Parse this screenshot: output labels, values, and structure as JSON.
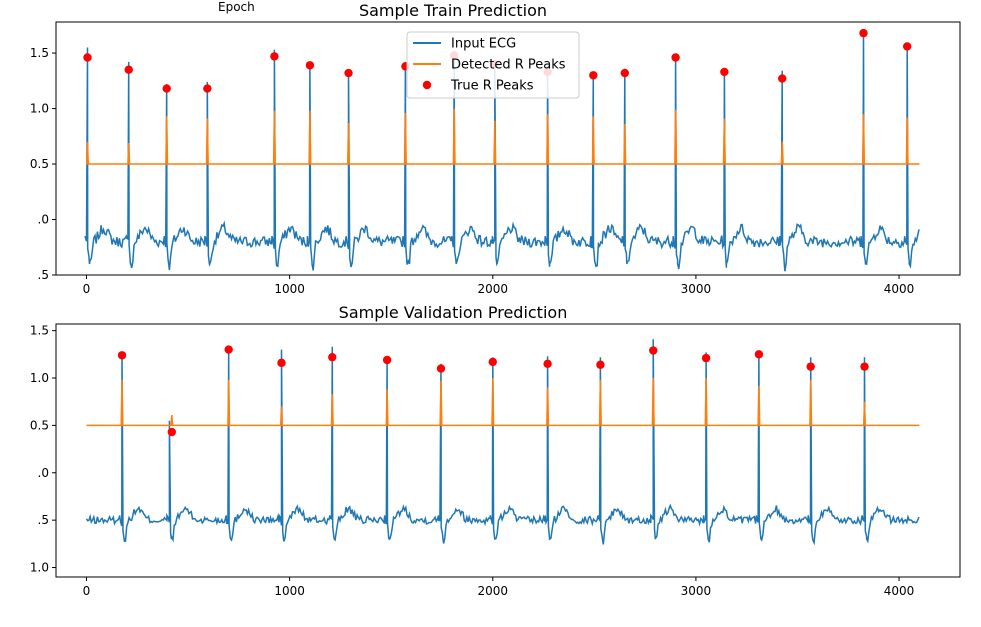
{
  "stray_label": "Epoch",
  "legend": {
    "input_ecg": "Input ECG",
    "detected": "Detected R Peaks",
    "true_peaks": "True R Peaks"
  },
  "colors": {
    "ecg": "#1f77b4",
    "detected": "#ff7f0e",
    "true": "#ff0000"
  },
  "chart_data": [
    {
      "type": "line",
      "title": "Sample Train Prediction",
      "xlim": [
        -150,
        4300
      ],
      "ylim": [
        -0.5,
        1.78
      ],
      "xticks": [
        0,
        1000,
        2000,
        3000,
        4000
      ],
      "yticks": [
        -0.5,
        0.0,
        0.5,
        1.0,
        1.5
      ],
      "ytick_labels": [
        ".5",
        ".0",
        "0.5",
        "1.0",
        "1.5"
      ],
      "grid": false,
      "legend_position": "upper center",
      "baseline": -0.2,
      "noise": 0.05,
      "detection_threshold": 0.5,
      "series": [
        {
          "name": "Input ECG",
          "peaks": [
            {
              "x": 5,
              "y": 1.55
            },
            {
              "x": 208,
              "y": 1.42
            },
            {
              "x": 395,
              "y": 1.22
            },
            {
              "x": 595,
              "y": 1.24
            },
            {
              "x": 925,
              "y": 1.53
            },
            {
              "x": 1100,
              "y": 1.42
            },
            {
              "x": 1290,
              "y": 1.34
            },
            {
              "x": 1570,
              "y": 1.42
            },
            {
              "x": 1810,
              "y": 1.5
            },
            {
              "x": 2010,
              "y": 1.42
            },
            {
              "x": 2270,
              "y": 1.4
            },
            {
              "x": 2495,
              "y": 1.33
            },
            {
              "x": 2650,
              "y": 1.36
            },
            {
              "x": 2900,
              "y": 1.48
            },
            {
              "x": 3140,
              "y": 1.36
            },
            {
              "x": 3425,
              "y": 1.34
            },
            {
              "x": 3825,
              "y": 1.7
            },
            {
              "x": 4040,
              "y": 1.58
            }
          ]
        },
        {
          "name": "Detected R Peaks",
          "spikes": [
            {
              "x": 5,
              "y": 0.7
            },
            {
              "x": 208,
              "y": 0.69
            },
            {
              "x": 395,
              "y": 0.93
            },
            {
              "x": 595,
              "y": 0.91
            },
            {
              "x": 925,
              "y": 0.98
            },
            {
              "x": 1100,
              "y": 0.98
            },
            {
              "x": 1290,
              "y": 0.87
            },
            {
              "x": 1570,
              "y": 0.96
            },
            {
              "x": 1810,
              "y": 1.0
            },
            {
              "x": 2010,
              "y": 0.89
            },
            {
              "x": 2270,
              "y": 0.95
            },
            {
              "x": 2495,
              "y": 0.93
            },
            {
              "x": 2650,
              "y": 0.86
            },
            {
              "x": 2900,
              "y": 0.99
            },
            {
              "x": 3140,
              "y": 0.91
            },
            {
              "x": 3425,
              "y": 0.7
            },
            {
              "x": 3825,
              "y": 0.95
            },
            {
              "x": 4040,
              "y": 0.92
            }
          ]
        },
        {
          "name": "True R Peaks",
          "points": [
            {
              "x": 5,
              "y": 1.46
            },
            {
              "x": 208,
              "y": 1.35
            },
            {
              "x": 395,
              "y": 1.18
            },
            {
              "x": 595,
              "y": 1.18
            },
            {
              "x": 925,
              "y": 1.47
            },
            {
              "x": 1100,
              "y": 1.39
            },
            {
              "x": 1290,
              "y": 1.32
            },
            {
              "x": 1570,
              "y": 1.38
            },
            {
              "x": 1810,
              "y": 1.48
            },
            {
              "x": 2010,
              "y": 1.4
            },
            {
              "x": 2270,
              "y": 1.33
            },
            {
              "x": 2495,
              "y": 1.3
            },
            {
              "x": 2650,
              "y": 1.32
            },
            {
              "x": 2900,
              "y": 1.46
            },
            {
              "x": 3140,
              "y": 1.33
            },
            {
              "x": 3425,
              "y": 1.27
            },
            {
              "x": 3825,
              "y": 1.68
            },
            {
              "x": 4040,
              "y": 1.56
            }
          ]
        }
      ]
    },
    {
      "type": "line",
      "title": "Sample Validation Prediction",
      "xlim": [
        -150,
        4300
      ],
      "ylim": [
        -1.1,
        1.57
      ],
      "xticks": [
        0,
        1000,
        2000,
        3000,
        4000
      ],
      "yticks": [
        -1.0,
        -0.5,
        0.0,
        0.5,
        1.0,
        1.5
      ],
      "ytick_labels": [
        "1.0",
        ".5",
        ".0",
        "0.5",
        "1.0",
        "1.5"
      ],
      "grid": false,
      "baseline": -0.5,
      "noise": 0.04,
      "detection_threshold": 0.5,
      "series": [
        {
          "name": "Input ECG",
          "peaks": [
            {
              "x": 175,
              "y": 1.28
            },
            {
              "x": 408,
              "y": 0.55
            },
            {
              "x": 700,
              "y": 1.3
            },
            {
              "x": 960,
              "y": 1.3
            },
            {
              "x": 1210,
              "y": 1.33
            },
            {
              "x": 1480,
              "y": 1.22
            },
            {
              "x": 1745,
              "y": 1.15
            },
            {
              "x": 2000,
              "y": 1.22
            },
            {
              "x": 2270,
              "y": 1.23
            },
            {
              "x": 2530,
              "y": 1.22
            },
            {
              "x": 2790,
              "y": 1.41
            },
            {
              "x": 3050,
              "y": 1.27
            },
            {
              "x": 3310,
              "y": 1.27
            },
            {
              "x": 3565,
              "y": 1.22
            },
            {
              "x": 3830,
              "y": 1.22
            }
          ]
        },
        {
          "name": "Detected R Peaks",
          "spikes": [
            {
              "x": 175,
              "y": 0.98
            },
            {
              "x": 420,
              "y": 0.61
            },
            {
              "x": 700,
              "y": 0.98
            },
            {
              "x": 960,
              "y": 0.7
            },
            {
              "x": 1210,
              "y": 0.83
            },
            {
              "x": 1480,
              "y": 0.88
            },
            {
              "x": 1745,
              "y": 0.97
            },
            {
              "x": 2000,
              "y": 1.0
            },
            {
              "x": 2270,
              "y": 0.9
            },
            {
              "x": 2530,
              "y": 0.98
            },
            {
              "x": 2790,
              "y": 1.0
            },
            {
              "x": 3050,
              "y": 1.0
            },
            {
              "x": 3310,
              "y": 0.92
            },
            {
              "x": 3565,
              "y": 0.98
            },
            {
              "x": 3830,
              "y": 0.75
            }
          ]
        },
        {
          "name": "True R Peaks",
          "points": [
            {
              "x": 175,
              "y": 1.24
            },
            {
              "x": 420,
              "y": 0.43
            },
            {
              "x": 700,
              "y": 1.3
            },
            {
              "x": 960,
              "y": 1.16
            },
            {
              "x": 1210,
              "y": 1.22
            },
            {
              "x": 1480,
              "y": 1.19
            },
            {
              "x": 1745,
              "y": 1.1
            },
            {
              "x": 2000,
              "y": 1.17
            },
            {
              "x": 2270,
              "y": 1.15
            },
            {
              "x": 2530,
              "y": 1.14
            },
            {
              "x": 2790,
              "y": 1.29
            },
            {
              "x": 3050,
              "y": 1.21
            },
            {
              "x": 3310,
              "y": 1.25
            },
            {
              "x": 3565,
              "y": 1.12
            },
            {
              "x": 3830,
              "y": 1.12
            }
          ]
        }
      ]
    }
  ]
}
